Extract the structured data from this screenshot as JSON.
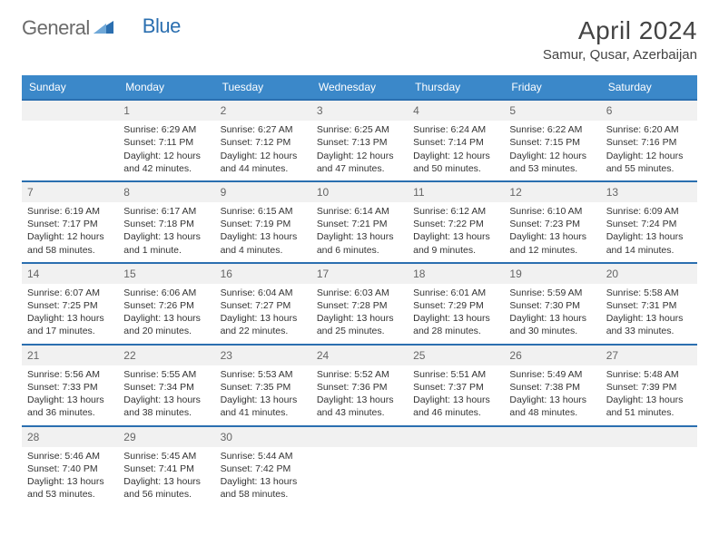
{
  "logo": {
    "text1": "General",
    "text2": "Blue"
  },
  "title": "April 2024",
  "location": "Samur, Qusar, Azerbaijan",
  "colors": {
    "header_bg": "#3b88c9",
    "header_text": "#ffffff",
    "row_border": "#2b6fb0",
    "cell_gray": "#f1f1f1",
    "text": "#333333",
    "logo_gray": "#6b6b6b",
    "logo_blue": "#2b6fb0"
  },
  "typography": {
    "title_fontsize": 28,
    "location_fontsize": 15,
    "header_fontsize": 12,
    "cell_fontsize": 10.5,
    "daynum_fontsize": 12
  },
  "days": [
    "Sunday",
    "Monday",
    "Tuesday",
    "Wednesday",
    "Thursday",
    "Friday",
    "Saturday"
  ],
  "weeks": [
    [
      {
        "num": "",
        "lines": []
      },
      {
        "num": "1",
        "lines": [
          "Sunrise: 6:29 AM",
          "Sunset: 7:11 PM",
          "Daylight: 12 hours",
          "and 42 minutes."
        ]
      },
      {
        "num": "2",
        "lines": [
          "Sunrise: 6:27 AM",
          "Sunset: 7:12 PM",
          "Daylight: 12 hours",
          "and 44 minutes."
        ]
      },
      {
        "num": "3",
        "lines": [
          "Sunrise: 6:25 AM",
          "Sunset: 7:13 PM",
          "Daylight: 12 hours",
          "and 47 minutes."
        ]
      },
      {
        "num": "4",
        "lines": [
          "Sunrise: 6:24 AM",
          "Sunset: 7:14 PM",
          "Daylight: 12 hours",
          "and 50 minutes."
        ]
      },
      {
        "num": "5",
        "lines": [
          "Sunrise: 6:22 AM",
          "Sunset: 7:15 PM",
          "Daylight: 12 hours",
          "and 53 minutes."
        ]
      },
      {
        "num": "6",
        "lines": [
          "Sunrise: 6:20 AM",
          "Sunset: 7:16 PM",
          "Daylight: 12 hours",
          "and 55 minutes."
        ]
      }
    ],
    [
      {
        "num": "7",
        "lines": [
          "Sunrise: 6:19 AM",
          "Sunset: 7:17 PM",
          "Daylight: 12 hours",
          "and 58 minutes."
        ]
      },
      {
        "num": "8",
        "lines": [
          "Sunrise: 6:17 AM",
          "Sunset: 7:18 PM",
          "Daylight: 13 hours",
          "and 1 minute."
        ]
      },
      {
        "num": "9",
        "lines": [
          "Sunrise: 6:15 AM",
          "Sunset: 7:19 PM",
          "Daylight: 13 hours",
          "and 4 minutes."
        ]
      },
      {
        "num": "10",
        "lines": [
          "Sunrise: 6:14 AM",
          "Sunset: 7:21 PM",
          "Daylight: 13 hours",
          "and 6 minutes."
        ]
      },
      {
        "num": "11",
        "lines": [
          "Sunrise: 6:12 AM",
          "Sunset: 7:22 PM",
          "Daylight: 13 hours",
          "and 9 minutes."
        ]
      },
      {
        "num": "12",
        "lines": [
          "Sunrise: 6:10 AM",
          "Sunset: 7:23 PM",
          "Daylight: 13 hours",
          "and 12 minutes."
        ]
      },
      {
        "num": "13",
        "lines": [
          "Sunrise: 6:09 AM",
          "Sunset: 7:24 PM",
          "Daylight: 13 hours",
          "and 14 minutes."
        ]
      }
    ],
    [
      {
        "num": "14",
        "lines": [
          "Sunrise: 6:07 AM",
          "Sunset: 7:25 PM",
          "Daylight: 13 hours",
          "and 17 minutes."
        ]
      },
      {
        "num": "15",
        "lines": [
          "Sunrise: 6:06 AM",
          "Sunset: 7:26 PM",
          "Daylight: 13 hours",
          "and 20 minutes."
        ]
      },
      {
        "num": "16",
        "lines": [
          "Sunrise: 6:04 AM",
          "Sunset: 7:27 PM",
          "Daylight: 13 hours",
          "and 22 minutes."
        ]
      },
      {
        "num": "17",
        "lines": [
          "Sunrise: 6:03 AM",
          "Sunset: 7:28 PM",
          "Daylight: 13 hours",
          "and 25 minutes."
        ]
      },
      {
        "num": "18",
        "lines": [
          "Sunrise: 6:01 AM",
          "Sunset: 7:29 PM",
          "Daylight: 13 hours",
          "and 28 minutes."
        ]
      },
      {
        "num": "19",
        "lines": [
          "Sunrise: 5:59 AM",
          "Sunset: 7:30 PM",
          "Daylight: 13 hours",
          "and 30 minutes."
        ]
      },
      {
        "num": "20",
        "lines": [
          "Sunrise: 5:58 AM",
          "Sunset: 7:31 PM",
          "Daylight: 13 hours",
          "and 33 minutes."
        ]
      }
    ],
    [
      {
        "num": "21",
        "lines": [
          "Sunrise: 5:56 AM",
          "Sunset: 7:33 PM",
          "Daylight: 13 hours",
          "and 36 minutes."
        ]
      },
      {
        "num": "22",
        "lines": [
          "Sunrise: 5:55 AM",
          "Sunset: 7:34 PM",
          "Daylight: 13 hours",
          "and 38 minutes."
        ]
      },
      {
        "num": "23",
        "lines": [
          "Sunrise: 5:53 AM",
          "Sunset: 7:35 PM",
          "Daylight: 13 hours",
          "and 41 minutes."
        ]
      },
      {
        "num": "24",
        "lines": [
          "Sunrise: 5:52 AM",
          "Sunset: 7:36 PM",
          "Daylight: 13 hours",
          "and 43 minutes."
        ]
      },
      {
        "num": "25",
        "lines": [
          "Sunrise: 5:51 AM",
          "Sunset: 7:37 PM",
          "Daylight: 13 hours",
          "and 46 minutes."
        ]
      },
      {
        "num": "26",
        "lines": [
          "Sunrise: 5:49 AM",
          "Sunset: 7:38 PM",
          "Daylight: 13 hours",
          "and 48 minutes."
        ]
      },
      {
        "num": "27",
        "lines": [
          "Sunrise: 5:48 AM",
          "Sunset: 7:39 PM",
          "Daylight: 13 hours",
          "and 51 minutes."
        ]
      }
    ],
    [
      {
        "num": "28",
        "lines": [
          "Sunrise: 5:46 AM",
          "Sunset: 7:40 PM",
          "Daylight: 13 hours",
          "and 53 minutes."
        ]
      },
      {
        "num": "29",
        "lines": [
          "Sunrise: 5:45 AM",
          "Sunset: 7:41 PM",
          "Daylight: 13 hours",
          "and 56 minutes."
        ]
      },
      {
        "num": "30",
        "lines": [
          "Sunrise: 5:44 AM",
          "Sunset: 7:42 PM",
          "Daylight: 13 hours",
          "and 58 minutes."
        ]
      },
      {
        "num": "",
        "lines": []
      },
      {
        "num": "",
        "lines": []
      },
      {
        "num": "",
        "lines": []
      },
      {
        "num": "",
        "lines": []
      }
    ]
  ]
}
